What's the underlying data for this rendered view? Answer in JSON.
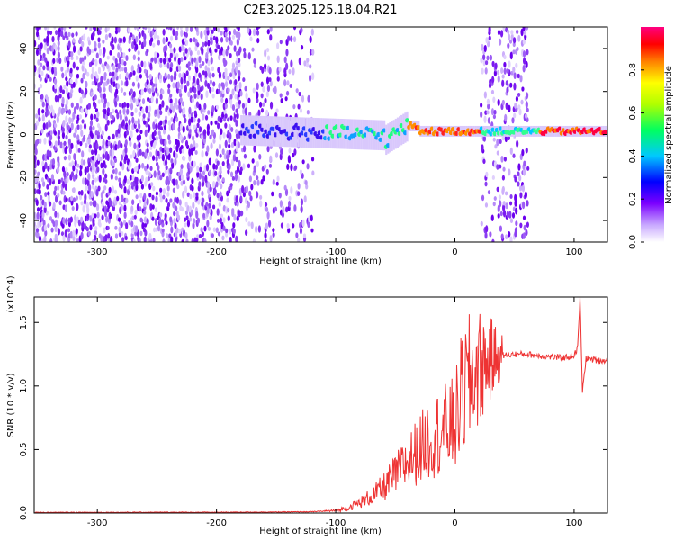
{
  "title": "C2E3.2025.125.18.04.R21",
  "chart_data": [
    {
      "type": "heatmap",
      "xlabel": "Height of straight line (km)",
      "ylabel": "Frequency (Hz)",
      "xlim": [
        -353,
        128
      ],
      "ylim": [
        -50,
        50
      ],
      "x_ticks": [
        "-300",
        "-200",
        "-100",
        "0",
        "100"
      ],
      "y_ticks": [
        "-40",
        "-20",
        "0",
        "20",
        "40"
      ],
      "colorbar": {
        "label": "Normalized spectral amplitude",
        "range": [
          0,
          1
        ],
        "ticks": [
          "0.0",
          "0.2",
          "0.4",
          "0.6",
          "0.8"
        ],
        "colormap": [
          "#ffffff",
          "#c0a0ff",
          "#7b00ff",
          "#0000ff",
          "#00d0ff",
          "#00ff60",
          "#c0ff00",
          "#ffff00",
          "#ff8000",
          "#ff0000",
          "#ff0080"
        ]
      },
      "grid": false
    },
    {
      "type": "line",
      "xlabel": "Height of straight line (km)",
      "ylabel": "SNR (10 * v/v)",
      "y_multiplier": "(x10^4)",
      "xlim": [
        -353,
        128
      ],
      "ylim": [
        0,
        1.7
      ],
      "x_ticks": [
        "-300",
        "-200",
        "-100",
        "0",
        "100"
      ],
      "y_ticks": [
        "0.0",
        "0.5",
        "1.0",
        "1.5"
      ],
      "line_color": "#ee3333",
      "x": [
        -353,
        -300,
        -250,
        -200,
        -150,
        -120,
        -100,
        -90,
        -80,
        -70,
        -60,
        -50,
        -40,
        -30,
        -20,
        -10,
        0,
        5,
        10,
        15,
        20,
        25,
        30,
        40,
        50,
        60,
        70,
        80,
        90,
        100,
        103,
        105,
        107,
        110,
        120,
        128
      ],
      "y": [
        0.005,
        0.005,
        0.006,
        0.006,
        0.008,
        0.01,
        0.02,
        0.04,
        0.08,
        0.13,
        0.2,
        0.3,
        0.4,
        0.5,
        0.6,
        0.65,
        0.7,
        0.9,
        1.0,
        1.08,
        1.14,
        1.18,
        1.21,
        1.24,
        1.25,
        1.25,
        1.24,
        1.23,
        1.22,
        1.24,
        1.3,
        1.7,
        0.95,
        1.22,
        1.2,
        1.2
      ]
    }
  ]
}
